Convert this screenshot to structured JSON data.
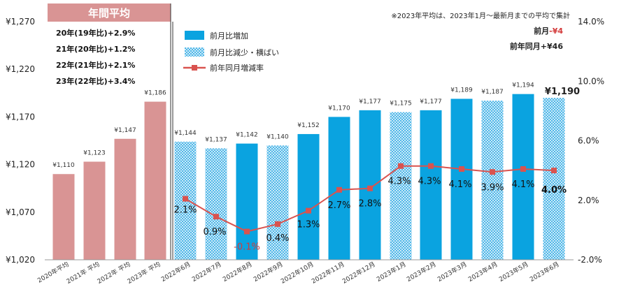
{
  "chart_data": {
    "type": "bar",
    "categories": [
      "2020年平均",
      "2021年 平均",
      "2022年 平均",
      "2023年 平均",
      "2022年6月",
      "2022年7月",
      "2022年8月",
      "2022年9月",
      "2022年10月",
      "2022年11月",
      "2022年12月",
      "2023年1月",
      "2023年2月",
      "2023年3月",
      "2023年4月",
      "2023年5月",
      "2023年6月"
    ],
    "series": [
      {
        "name": "",
        "type": "bar",
        "values": [
          1110,
          1123,
          1147,
          1186,
          1144,
          1137,
          1142,
          1140,
          1152,
          1170,
          1177,
          1175,
          1177,
          1189,
          1187,
          1194,
          1190
        ],
        "labels": [
          "¥1,110",
          "¥1,123",
          "¥1,147",
          "¥1,186",
          "¥1,144",
          "¥1,137",
          "¥1,142",
          "¥1,140",
          "¥1,152",
          "¥1,170",
          "¥1,177",
          "¥1,175",
          "¥1,177",
          "¥1,189",
          "¥1,187",
          "¥1,194",
          "¥1,190"
        ],
        "style": [
          "average",
          "average",
          "average",
          "average",
          "decrease",
          "decrease",
          "increase",
          "decrease",
          "increase",
          "increase",
          "increase",
          "decrease",
          "increase",
          "increase",
          "decrease",
          "increase",
          "decrease"
        ]
      },
      {
        "name": "前年同月増減率",
        "type": "line",
        "axis": "right",
        "values": [
          null,
          null,
          null,
          null,
          2.1,
          0.9,
          -0.1,
          0.4,
          1.3,
          2.7,
          2.8,
          4.3,
          4.3,
          4.1,
          3.9,
          4.1,
          4.0
        ],
        "labels": [
          "",
          "",
          "",
          "",
          "2.1%",
          "0.9%",
          "-0.1%",
          "0.4%",
          "1.3%",
          "2.7%",
          "2.8%",
          "4.3%",
          "4.3%",
          "4.1%",
          "3.9%",
          "4.1%",
          "4.0%"
        ]
      }
    ],
    "ylim": [
      1020,
      1270
    ],
    "yticks": [
      "¥1,020",
      "¥1,070",
      "¥1,120",
      "¥1,170",
      "¥1,220",
      "¥1,270"
    ],
    "y2lim": [
      -2.0,
      14.0
    ],
    "y2ticks": [
      "-2.0%",
      "2.0%",
      "6.0%",
      "10.0%",
      "14.0%"
    ],
    "legend": {
      "position": "top-center",
      "items": [
        "前月比増加",
        "前月比減少・横ばい",
        "前年同月増減率"
      ]
    },
    "colors": {
      "average": "#d99494",
      "increase": "#0aa3e0",
      "decrease": "#a8dcf3",
      "line": "#d9534f"
    }
  },
  "annotations": {
    "avg_title": "年間平均",
    "yoy": [
      "20年(19年比)+2.9%",
      "21年(20年比)+1.2%",
      "22年(21年比)+2.1%",
      "23年(22年比)+3.4%"
    ],
    "note": "※2023年平均は、2023年1月～最新月までの平均で集計",
    "mom_label": "前月",
    "mom_value": "-¥4",
    "yoy_month": "前年同月+¥46"
  }
}
